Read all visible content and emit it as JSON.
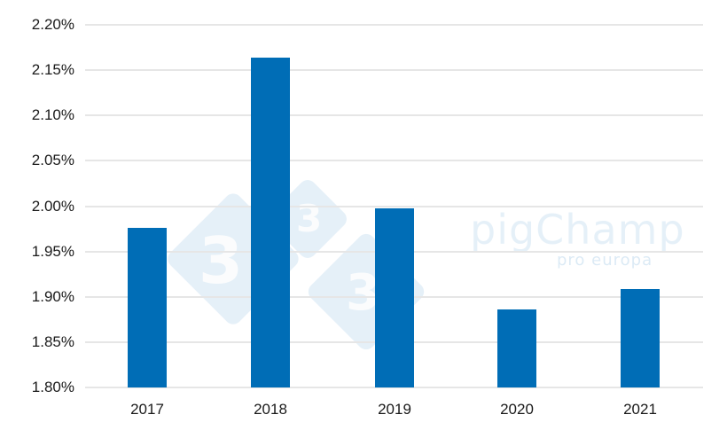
{
  "chart_data": {
    "type": "bar",
    "title": "",
    "xlabel": "",
    "ylabel": "",
    "categories": [
      "2017",
      "2018",
      "2019",
      "2020",
      "2021"
    ],
    "values": [
      1.976,
      2.164,
      1.998,
      1.886,
      1.909
    ],
    "value_unit": "%",
    "ylim": [
      1.8,
      2.2
    ],
    "yticks": [
      "2.20%",
      "2.15%",
      "2.10%",
      "2.05%",
      "2.00%",
      "1.95%",
      "1.90%",
      "1.85%",
      "1.80%"
    ],
    "grid": true,
    "legend": null,
    "bar_color": "#006db6"
  },
  "watermark": {
    "brand": "pigChamp",
    "sub": "pro europa",
    "mark_digit": "3"
  }
}
